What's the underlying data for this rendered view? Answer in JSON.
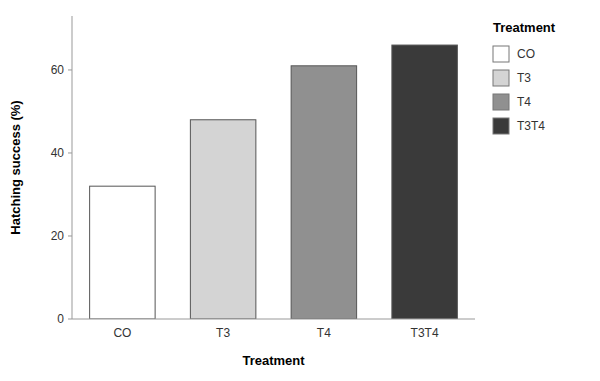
{
  "chart_data": {
    "type": "bar",
    "categories": [
      "CO",
      "T3",
      "T4",
      "T3T4"
    ],
    "values": [
      32,
      48,
      61,
      66
    ],
    "colors": [
      "#ffffff",
      "#d4d4d4",
      "#909090",
      "#3a3a3a"
    ],
    "xlabel": "Treatment",
    "ylabel": "Hatching success (%)",
    "ylim": [
      0,
      73
    ],
    "yticks": [
      0,
      20,
      40,
      60
    ],
    "legend_title": "Treatment",
    "legend": "right",
    "grid": false
  }
}
